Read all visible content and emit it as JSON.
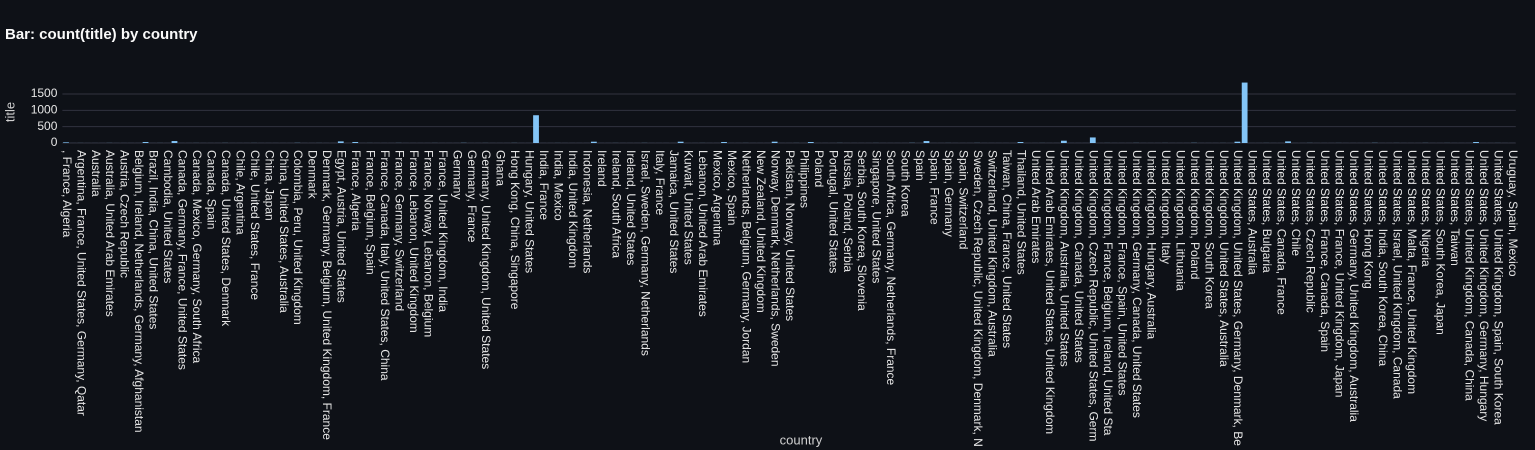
{
  "chart_data": {
    "type": "bar",
    "title": "Bar: count(title) by country",
    "x_label": "country",
    "y_label": "title",
    "color": "#83c5f7",
    "grid": true,
    "ylim": [
      0,
      1950
    ],
    "yticks": [
      0,
      500,
      1000,
      1500
    ],
    "categories": [
      ", France, Algeria",
      null,
      "Argentina, France, United States, Germany, Qatar",
      null,
      "Australia",
      null,
      "Australia, United Arab Emirates",
      null,
      "Austria, Czech Republic",
      null,
      "Belgium, Ireland, Netherlands, Germany, Afghanistan",
      null,
      "Brazil, India, China, United States",
      null,
      "Cambodia, United States",
      null,
      "Canada, Germany, France, United States",
      null,
      "Canada, Mexico, Germany, South Africa",
      null,
      "Canada, Spain",
      null,
      "Canada, United States, Denmark",
      null,
      "Chile, Argentina",
      null,
      "Chile, United States, France",
      null,
      "China, Japan",
      null,
      "China, United States, Australia",
      null,
      "Colombia, Peru, United Kingdom",
      null,
      "Denmark",
      null,
      "Denmark, Germany, Belgium, United Kingdom, France",
      null,
      "Egypt, Austria, United States",
      null,
      "France, Algeria",
      null,
      "France, Belgium, Spain",
      null,
      "France, Canada, Italy, United States, China",
      null,
      "France, Germany, Switzerland",
      null,
      "France, Lebanon, United Kingdom",
      null,
      "France, Norway, Lebanon, Belgium",
      null,
      "France, United Kingdom, India",
      null,
      "Germany",
      null,
      "Germany, France",
      null,
      "Germany, United Kingdom, United States",
      null,
      "Ghana",
      null,
      "Hong Kong, China, Singapore",
      null,
      "Hungary, United States",
      null,
      "India, France",
      null,
      "India, Mexico",
      null,
      "India, United Kingdom",
      null,
      "Indonesia, Netherlands",
      null,
      "Ireland",
      null,
      "Ireland, South Africa",
      null,
      "Ireland, United States",
      null,
      "Israel, Sweden, Germany, Netherlands",
      null,
      "Italy, France",
      null,
      "Jamaica, United States",
      null,
      "Kuwait, United States",
      null,
      "Lebanon, United Arab Emirates",
      null,
      "Mexico, Argentina",
      null,
      "Mexico, Spain",
      null,
      "Netherlands, Belgium, Germany, Jordan",
      null,
      "New Zealand, United Kingdom",
      null,
      "Norway, Denmark, Netherlands, Sweden",
      null,
      "Pakistan, Norway, United States",
      null,
      "Philippines",
      null,
      "Poland",
      null,
      "Portugal, United States",
      null,
      "Russia, Poland, Serbia",
      null,
      "Serbia, South Korea, Slovenia",
      null,
      "Singapore, United States",
      null,
      "South Africa, Germany, Netherlands, France",
      null,
      "South Korea",
      null,
      "Spain",
      null,
      "Spain, France",
      null,
      "Spain, Germany",
      null,
      "Spain, Switzerland",
      null,
      "Sweden, Czech Republic, United Kingdom, Denmark, N",
      null,
      "Switzerland, United Kingdom, Australia",
      null,
      "Taiwan, China, France, United States",
      null,
      "Thailand, United States",
      null,
      "United Arab Emirates",
      null,
      "United Arab Emirates, United States, United Kingdom",
      null,
      "United Kingdom, Australia, United States",
      null,
      "United Kingdom, Canada, United States",
      null,
      "United Kingdom, Czech Republic, United States, Germ",
      null,
      "United Kingdom, France, Belgium, Ireland, United Sta",
      null,
      "United Kingdom, France, Spain, United States",
      null,
      "United Kingdom, Germany, Canada, United States",
      null,
      "United Kingdom, Hungary, Australia",
      null,
      "United Kingdom, Italy",
      null,
      "United Kingdom, Lithuania",
      null,
      "United Kingdom, Poland",
      null,
      "United Kingdom, South Korea",
      null,
      "United Kingdom, United States, Australia",
      null,
      "United Kingdom, United States, Germany, Denmark, Be",
      null,
      "United States, Australia",
      null,
      "United States, Bulgaria",
      null,
      "United States, Canada, France",
      null,
      "United States, Chile",
      null,
      "United States, Czech Republic",
      null,
      "United States, France, Canada, Spain",
      null,
      "United States, France, United Kingdom, Japan",
      null,
      "United States, Germany, United Kingdom, Australia",
      null,
      "United States, Hong Kong",
      null,
      "United States, India, South Korea, China",
      null,
      "United States, Israel, United Kingdom, Canada",
      null,
      "United States, Malta, France, United Kingdom",
      null,
      "United States, Nigeria",
      null,
      "United States, South Korea, Japan",
      null,
      "United States, Taiwan",
      null,
      "United States, United Kingdom, Canada, China",
      null,
      "United States, United Kingdom, Germany, Hungary",
      null,
      "United States, United Kingdom, Spain, South Korea",
      null,
      "Uruguay, Spain, Mexico"
    ],
    "values": [
      20,
      1,
      2,
      1,
      1,
      1,
      3,
      1,
      1,
      1,
      1,
      30,
      1,
      2,
      1,
      60,
      1,
      1,
      2,
      1,
      1,
      1,
      3,
      1,
      1,
      1,
      2,
      1,
      1,
      1,
      1,
      1,
      5,
      1,
      1,
      2,
      1,
      1,
      50,
      1,
      30,
      1,
      2,
      1,
      1,
      1,
      3,
      1,
      1,
      1,
      1,
      2,
      1,
      1,
      1,
      5,
      1,
      1,
      2,
      1,
      1,
      1,
      3,
      1,
      1,
      850,
      1,
      1,
      2,
      1,
      1,
      1,
      1,
      40,
      1,
      1,
      2,
      1,
      1,
      1,
      3,
      1,
      1,
      1,
      1,
      40,
      1,
      1,
      2,
      1,
      1,
      30,
      1,
      1,
      2,
      1,
      1,
      1,
      40,
      1,
      1,
      2,
      1,
      30,
      1,
      1,
      1,
      3,
      1,
      1,
      1,
      1,
      2,
      1,
      1,
      1,
      1,
      5,
      1,
      60,
      1,
      1,
      2,
      1,
      1,
      1,
      3,
      1,
      1,
      1,
      1,
      1,
      30,
      1,
      1,
      2,
      1,
      1,
      70,
      1,
      1,
      1,
      170,
      1,
      2,
      1,
      1,
      1,
      3,
      1,
      1,
      1,
      2,
      1,
      1,
      1,
      5,
      1,
      1,
      1,
      2,
      1,
      40,
      1850,
      1,
      1,
      2,
      1,
      1,
      50,
      1,
      1,
      3,
      1,
      1,
      1,
      2,
      1,
      1,
      1,
      1,
      5,
      1,
      1,
      2,
      1,
      1,
      1,
      3,
      1,
      1,
      2,
      1,
      1,
      1,
      30,
      1,
      1,
      2,
      1,
      1
    ]
  }
}
